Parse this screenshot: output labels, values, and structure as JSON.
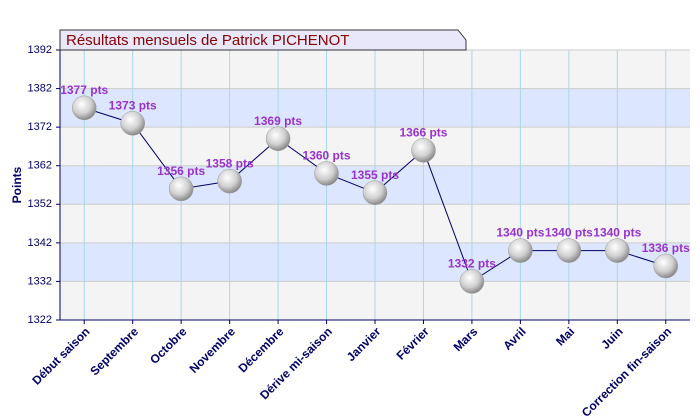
{
  "chart_data": {
    "type": "line",
    "title": "Résultats mensuels de  Patrick PICHENOT",
    "y_label": "Points",
    "categories": [
      "Début saison",
      "Septembre",
      "Octobre",
      "Novembre",
      "Décembre",
      "Dérive mi-saison",
      "Janvier",
      "Février",
      "Mars",
      "Avril",
      "Mai",
      "Juin",
      "Correction fin-saison"
    ],
    "values": [
      1377,
      1373,
      1356,
      1358,
      1369,
      1360,
      1355,
      1366,
      1332,
      1340,
      1340,
      1340,
      1336
    ],
    "value_labels": [
      "1377 pts",
      "1373 pts",
      "1356 pts",
      "1358 pts",
      "1369 pts",
      "1360 pts",
      "1355 pts",
      "1366 pts",
      "1332 pts",
      "1340 pts",
      "1340 pts",
      "1340 pts",
      "1336 pts"
    ],
    "color": "#000066",
    "ylim": [
      1322,
      1392
    ],
    "yticks": [
      1322,
      1332,
      1342,
      1352,
      1362,
      1372,
      1382,
      1392
    ],
    "grid": true
  }
}
